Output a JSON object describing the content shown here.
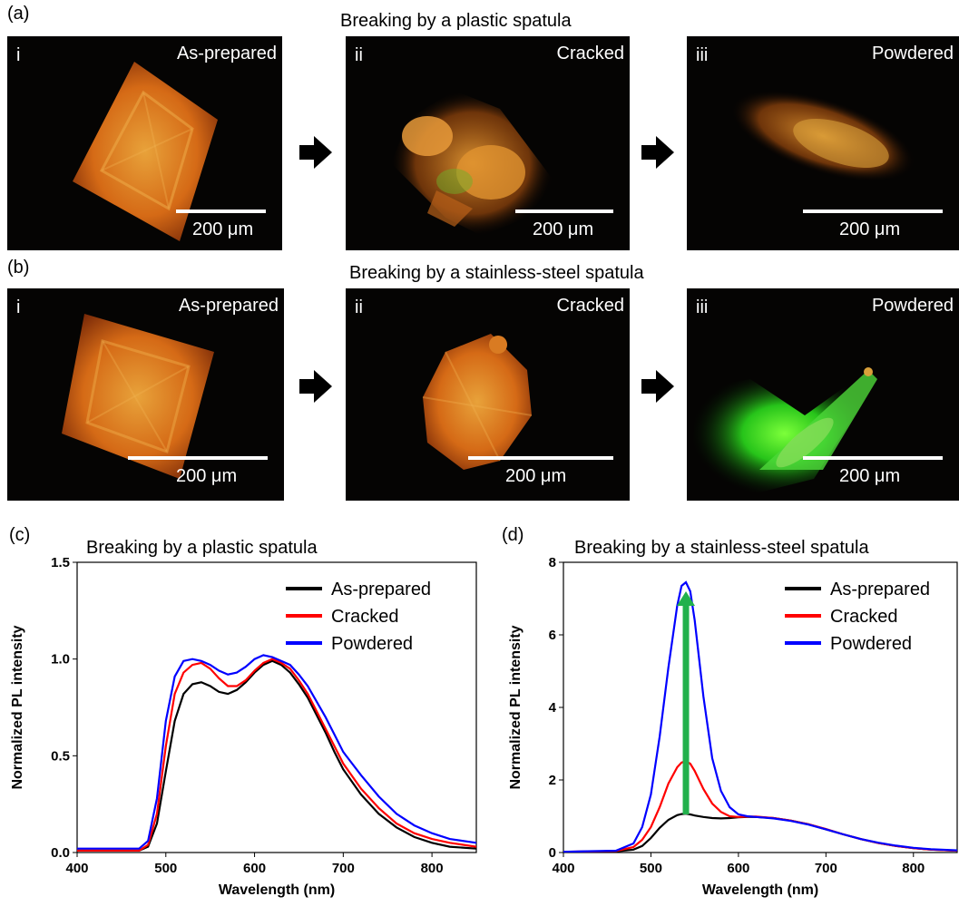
{
  "row_a": {
    "label": "(a)",
    "heading": "Breaking by a plastic spatula",
    "panels": [
      {
        "roman": "i",
        "state": "As-prepared",
        "scalebar": "200 μm"
      },
      {
        "roman": "ii",
        "state": "Cracked",
        "scalebar": "200 μm"
      },
      {
        "roman": "iii",
        "state": "Powdered",
        "scalebar": "200 μm"
      }
    ]
  },
  "row_b": {
    "label": "(b)",
    "heading": "Breaking by a stainless-steel spatula",
    "panels": [
      {
        "roman": "i",
        "state": "As-prepared",
        "scalebar": "200 μm"
      },
      {
        "roman": "ii",
        "state": "Cracked",
        "scalebar": "200 μm"
      },
      {
        "roman": "iii",
        "state": "Powdered",
        "scalebar": "200 μm"
      }
    ]
  },
  "chart_data": [
    {
      "panel_label": "(c)",
      "type": "line",
      "title": "Breaking by a plastic spatula",
      "xlabel": "Wavelength (nm)",
      "ylabel": "Normalized PL intensity",
      "xlim": [
        400,
        850
      ],
      "ylim": [
        0,
        1.5
      ],
      "xticks": [
        "400",
        "500",
        "600",
        "700",
        "800"
      ],
      "yticks": [
        "0.0",
        "0.5",
        "1.0",
        "1.5"
      ],
      "legend_position": "top-right",
      "x": [
        400,
        470,
        480,
        490,
        500,
        510,
        520,
        530,
        540,
        550,
        560,
        570,
        580,
        590,
        600,
        610,
        620,
        630,
        640,
        650,
        660,
        670,
        680,
        690,
        700,
        720,
        740,
        760,
        780,
        800,
        820,
        850
      ],
      "series": [
        {
          "name": "As-prepared",
          "color": "#000000",
          "values": [
            0.01,
            0.01,
            0.03,
            0.15,
            0.42,
            0.68,
            0.82,
            0.87,
            0.88,
            0.86,
            0.83,
            0.82,
            0.84,
            0.88,
            0.93,
            0.97,
            0.99,
            0.97,
            0.93,
            0.87,
            0.8,
            0.71,
            0.62,
            0.52,
            0.43,
            0.3,
            0.2,
            0.13,
            0.08,
            0.05,
            0.03,
            0.02
          ]
        },
        {
          "name": "Cracked",
          "color": "#ff0000",
          "values": [
            0.01,
            0.01,
            0.04,
            0.2,
            0.55,
            0.82,
            0.93,
            0.97,
            0.98,
            0.95,
            0.9,
            0.86,
            0.86,
            0.89,
            0.94,
            0.98,
            1.0,
            0.98,
            0.95,
            0.89,
            0.82,
            0.73,
            0.64,
            0.55,
            0.46,
            0.33,
            0.23,
            0.15,
            0.1,
            0.07,
            0.05,
            0.03
          ]
        },
        {
          "name": "Powdered",
          "color": "#0000ff",
          "values": [
            0.02,
            0.02,
            0.06,
            0.28,
            0.68,
            0.91,
            0.99,
            1.0,
            0.99,
            0.97,
            0.94,
            0.92,
            0.93,
            0.96,
            1.0,
            1.02,
            1.01,
            0.99,
            0.97,
            0.92,
            0.86,
            0.78,
            0.7,
            0.61,
            0.52,
            0.4,
            0.29,
            0.2,
            0.14,
            0.1,
            0.07,
            0.05
          ]
        }
      ]
    },
    {
      "panel_label": "(d)",
      "type": "line",
      "title": "Breaking by a stainless-steel spatula",
      "xlabel": "Wavelength (nm)",
      "ylabel": "Normalized PL intensity",
      "xlim": [
        400,
        850
      ],
      "ylim": [
        0,
        8
      ],
      "xticks": [
        "400",
        "500",
        "600",
        "700",
        "800"
      ],
      "yticks": [
        "0",
        "2",
        "4",
        "6",
        "8"
      ],
      "legend_position": "top-right",
      "arrow": {
        "x": 540,
        "from": 1.05,
        "to": 7.2,
        "color": "#22b14c"
      },
      "x": [
        400,
        460,
        480,
        490,
        500,
        510,
        520,
        530,
        535,
        540,
        545,
        550,
        560,
        570,
        580,
        590,
        600,
        610,
        620,
        640,
        660,
        680,
        700,
        720,
        740,
        760,
        780,
        800,
        820,
        850
      ],
      "series": [
        {
          "name": "As-prepared",
          "color": "#000000",
          "values": [
            0.02,
            0.03,
            0.08,
            0.18,
            0.4,
            0.68,
            0.9,
            1.03,
            1.06,
            1.07,
            1.05,
            1.02,
            0.98,
            0.95,
            0.94,
            0.95,
            0.97,
            0.98,
            0.98,
            0.95,
            0.88,
            0.78,
            0.64,
            0.5,
            0.37,
            0.26,
            0.18,
            0.12,
            0.08,
            0.05
          ]
        },
        {
          "name": "Cracked",
          "color": "#ff0000",
          "values": [
            0.02,
            0.04,
            0.15,
            0.35,
            0.7,
            1.25,
            1.9,
            2.35,
            2.48,
            2.52,
            2.45,
            2.25,
            1.75,
            1.35,
            1.12,
            1.0,
            0.98,
            0.99,
            0.99,
            0.95,
            0.88,
            0.78,
            0.65,
            0.5,
            0.37,
            0.26,
            0.18,
            0.12,
            0.08,
            0.05
          ]
        },
        {
          "name": "Powdered",
          "color": "#0000ff",
          "values": [
            0.02,
            0.05,
            0.25,
            0.7,
            1.6,
            3.2,
            5.1,
            6.8,
            7.35,
            7.45,
            7.2,
            6.4,
            4.3,
            2.6,
            1.7,
            1.25,
            1.05,
            1.0,
            0.98,
            0.94,
            0.87,
            0.77,
            0.64,
            0.5,
            0.37,
            0.27,
            0.19,
            0.13,
            0.09,
            0.06
          ]
        }
      ]
    }
  ]
}
